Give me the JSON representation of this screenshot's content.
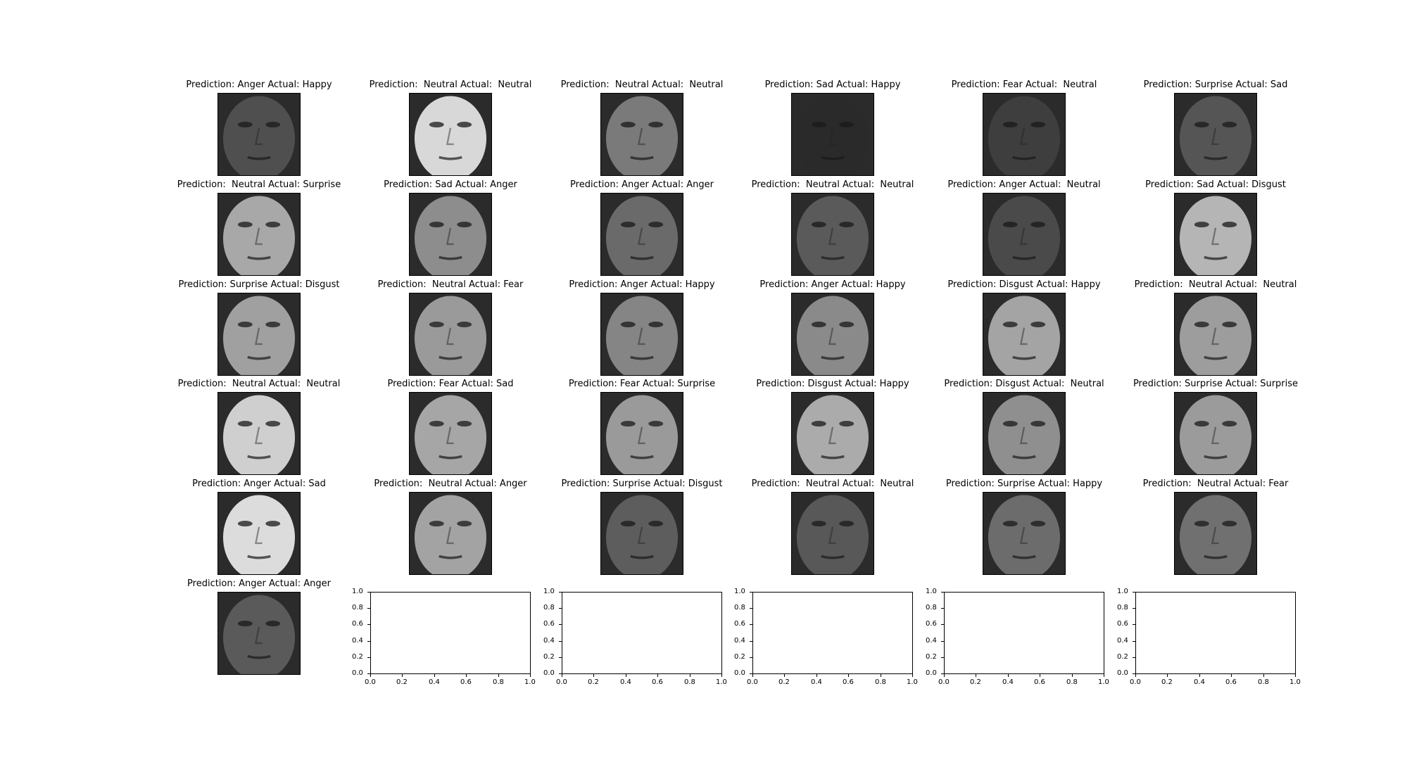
{
  "figure": {
    "panels": [
      {
        "title": "Prediction: Anger Actual: Happy",
        "tone": "#4f4f4f"
      },
      {
        "title": "Prediction:  Neutral Actual:  Neutral",
        "tone": "#d8d8d8"
      },
      {
        "title": "Prediction:  Neutral Actual:  Neutral",
        "tone": "#7a7a7a"
      },
      {
        "title": "Prediction: Sad Actual: Happy",
        "tone": "#2a2a2a"
      },
      {
        "title": "Prediction: Fear Actual:  Neutral",
        "tone": "#3e3e3e"
      },
      {
        "title": "Prediction: Surprise Actual: Sad",
        "tone": "#555555"
      },
      {
        "title": "Prediction:  Neutral Actual: Surprise",
        "tone": "#a8a8a8"
      },
      {
        "title": "Prediction: Sad Actual: Anger",
        "tone": "#8d8d8d"
      },
      {
        "title": "Prediction: Anger Actual: Anger",
        "tone": "#6a6a6a"
      },
      {
        "title": "Prediction:  Neutral Actual:  Neutral",
        "tone": "#5a5a5a"
      },
      {
        "title": "Prediction: Anger Actual:  Neutral",
        "tone": "#4a4a4a"
      },
      {
        "title": "Prediction: Sad Actual: Disgust",
        "tone": "#b5b5b5"
      },
      {
        "title": "Prediction: Surprise Actual: Disgust",
        "tone": "#a0a0a0"
      },
      {
        "title": "Prediction:  Neutral Actual: Fear",
        "tone": "#9a9a9a"
      },
      {
        "title": "Prediction: Anger Actual: Happy",
        "tone": "#858585"
      },
      {
        "title": "Prediction: Anger Actual: Happy",
        "tone": "#8a8a8a"
      },
      {
        "title": "Prediction: Disgust Actual: Happy",
        "tone": "#a4a4a4"
      },
      {
        "title": "Prediction:  Neutral Actual:  Neutral",
        "tone": "#9d9d9d"
      },
      {
        "title": "Prediction:  Neutral Actual:  Neutral",
        "tone": "#cfcfcf"
      },
      {
        "title": "Prediction: Fear Actual: Sad",
        "tone": "#a6a6a6"
      },
      {
        "title": "Prediction: Fear Actual: Surprise",
        "tone": "#9a9a9a"
      },
      {
        "title": "Prediction: Disgust Actual: Happy",
        "tone": "#ababab"
      },
      {
        "title": "Prediction: Disgust Actual:  Neutral",
        "tone": "#8f8f8f"
      },
      {
        "title": "Prediction: Surprise Actual: Surprise",
        "tone": "#9b9b9b"
      },
      {
        "title": "Prediction: Anger Actual: Sad",
        "tone": "#dcdcdc"
      },
      {
        "title": "Prediction:  Neutral Actual: Anger",
        "tone": "#a3a3a3"
      },
      {
        "title": "Prediction: Surprise Actual: Disgust",
        "tone": "#5d5d5d"
      },
      {
        "title": "Prediction:  Neutral Actual:  Neutral",
        "tone": "#585858"
      },
      {
        "title": "Prediction: Surprise Actual: Happy",
        "tone": "#6c6c6c"
      },
      {
        "title": "Prediction:  Neutral Actual: Fear",
        "tone": "#707070"
      },
      {
        "title": "Prediction: Anger Actual: Anger",
        "tone": "#5a5a5a"
      }
    ],
    "empty_axes_ticks": [
      "0.0",
      "0.2",
      "0.4",
      "0.6",
      "0.8",
      "1.0"
    ]
  }
}
